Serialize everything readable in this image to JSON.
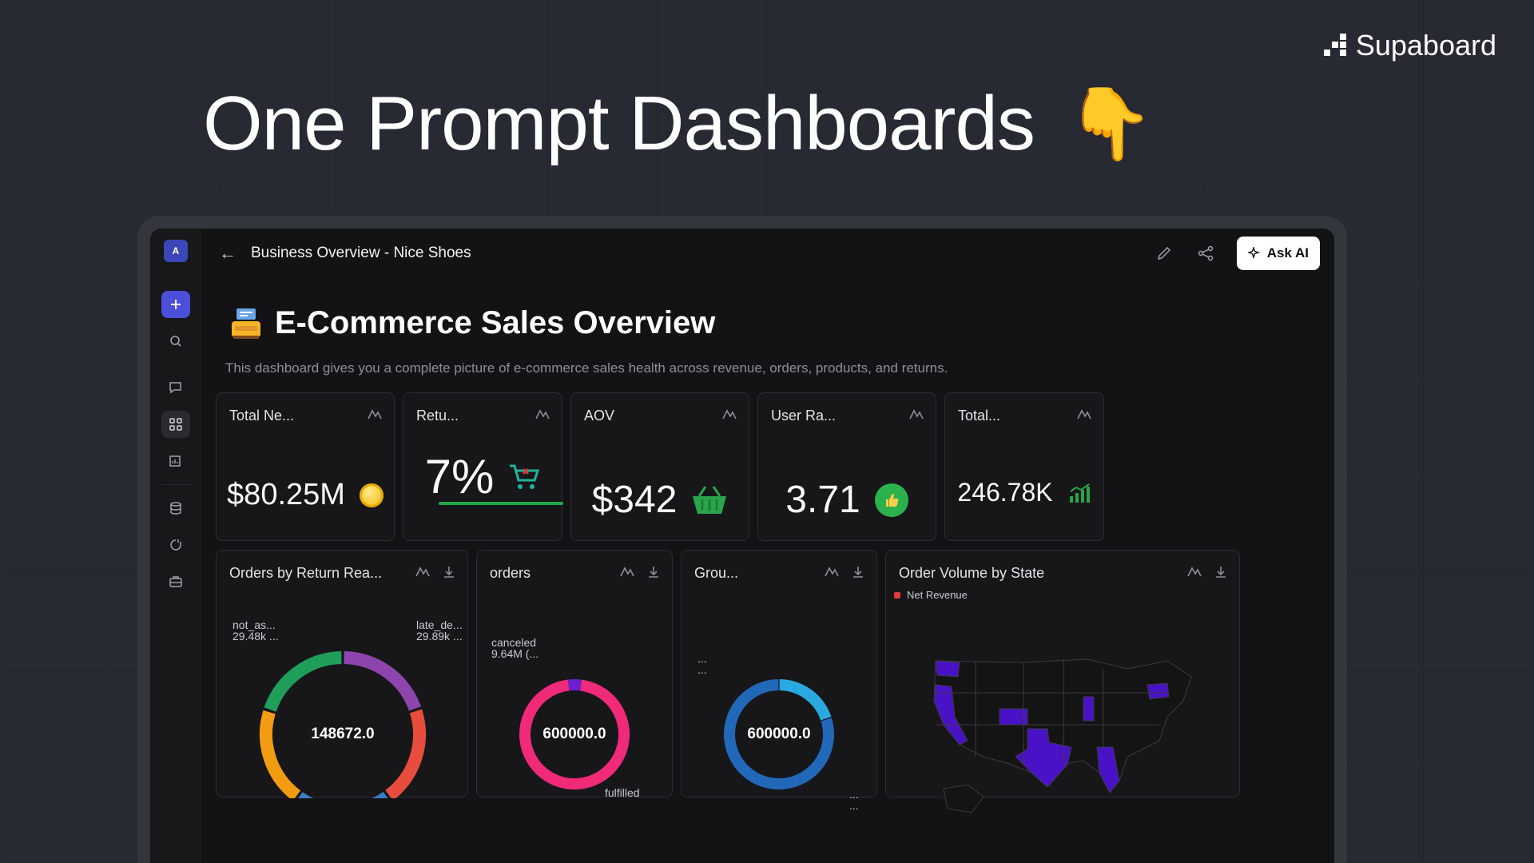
{
  "brand": {
    "name": "Supaboard"
  },
  "hero": {
    "title": "One Prompt Dashboards",
    "emoji": "👇"
  },
  "app": {
    "avatar_initial": "A",
    "breadcrumb": "Business Overview - Nice Shoes",
    "ask_ai_label": "Ask AI"
  },
  "dashboard": {
    "title": "E-Commerce Sales Overview",
    "description": "This dashboard gives you a complete picture of e-commerce sales health across revenue, orders, products, and returns."
  },
  "kpis": [
    {
      "title": "Total Ne...",
      "value": "$80.25M",
      "icon": "coin-icon"
    },
    {
      "title": "Retu...",
      "value": "7%",
      "icon": "cart-x-icon",
      "progress": 0.07
    },
    {
      "title": "AOV",
      "value": "$342",
      "icon": "basket-icon"
    },
    {
      "title": "User Ra...",
      "value": "3.71",
      "icon": "thumbs-up-icon"
    },
    {
      "title": "Total...",
      "value": "246.78K",
      "icon": "bar-chart-icon"
    }
  ],
  "charts": {
    "returns": {
      "title": "Orders by Return Rea...",
      "center": "148672.0",
      "label_left_name": "not_as...",
      "label_left_value": "29.48k ...",
      "label_right_name": "late_de...",
      "label_right_value": "29.89k ..."
    },
    "orders": {
      "title": "orders",
      "center": "600000.0",
      "label_top_name": "canceled",
      "label_top_value": "9.64M (...",
      "label_bottom": "fulfilled"
    },
    "group": {
      "title": "Grou...",
      "center": "600000.0",
      "label_top": "...",
      "label_top2": "...",
      "label_bottom": "...",
      "label_bottom2": "..."
    },
    "map": {
      "title": "Order Volume by State",
      "legend": "Net Revenue"
    }
  },
  "chart_data": [
    {
      "type": "pie",
      "title": "Orders by Return Rea...",
      "center_total": 148672.0,
      "slices": [
        {
          "label": "not_as...",
          "value": 29480,
          "color": "#8e44ad"
        },
        {
          "label": "late_de...",
          "value": 29890,
          "color": "#e74c3c"
        },
        {
          "label": "",
          "value": 29800,
          "color": "#3a7cc2"
        },
        {
          "label": "",
          "value": 29700,
          "color": "#f39c12"
        },
        {
          "label": "",
          "value": 29802,
          "color": "#1f9e5a"
        }
      ]
    },
    {
      "type": "pie",
      "title": "orders",
      "center_total": 600000.0,
      "slices": [
        {
          "label": "canceled",
          "value": 0.04,
          "color": "#6a1fd1"
        },
        {
          "label": "fulfilled",
          "value": 0.96,
          "color": "#ef2a79"
        }
      ]
    },
    {
      "type": "pie",
      "title": "Grou...",
      "center_total": 600000.0,
      "slices": [
        {
          "label": "...",
          "value": 0.2,
          "color": "#2aa9e0"
        },
        {
          "label": "...",
          "value": 0.8,
          "color": "#2168b8"
        }
      ]
    }
  ],
  "colors": {
    "accent": "#4c4fd9",
    "map_highlight": "#4a12c7",
    "map_base": "#141414"
  }
}
